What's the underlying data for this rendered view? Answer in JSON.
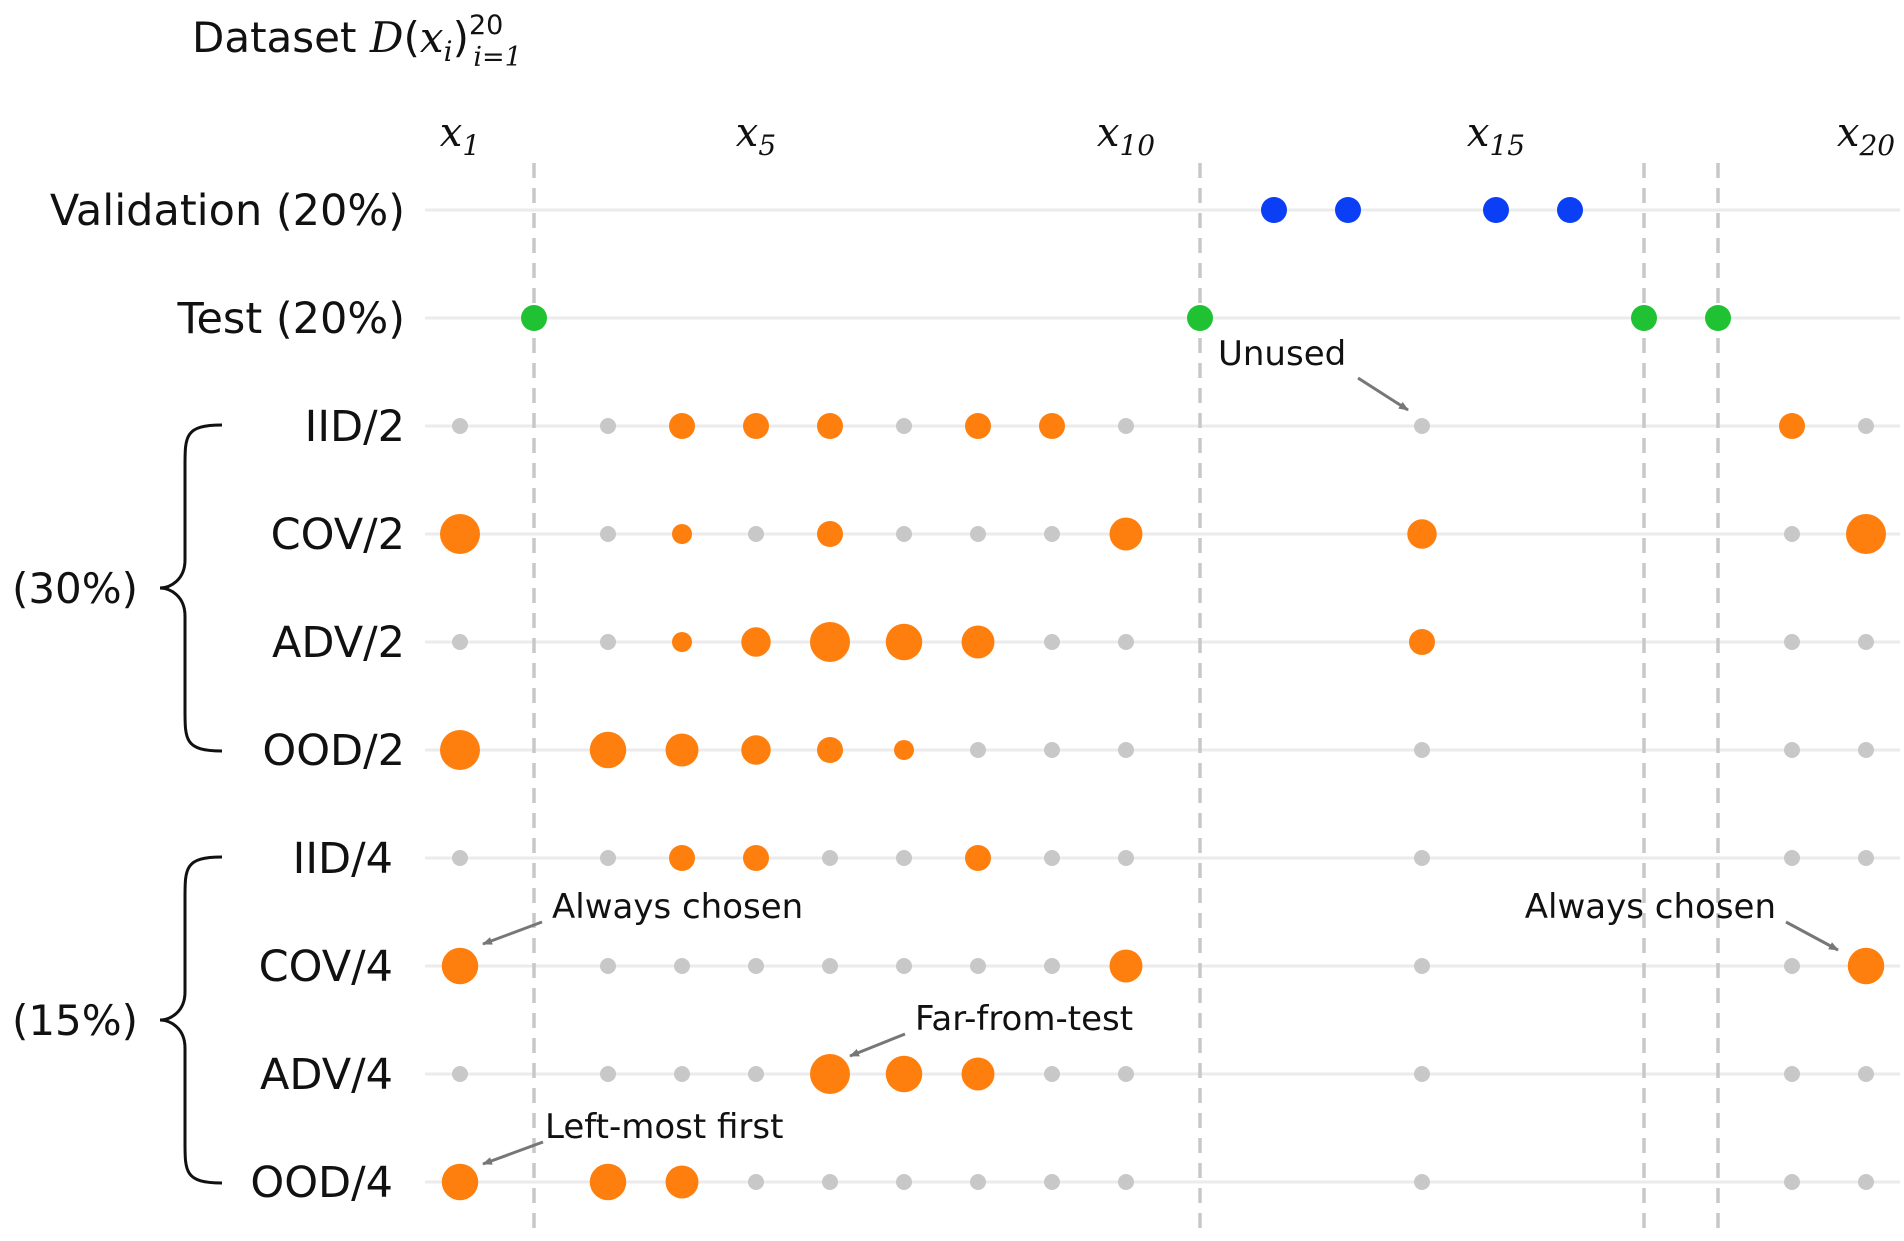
{
  "chart_data": {
    "type": "scatter",
    "title": {
      "prefix": "Dataset ",
      "func": "D",
      "open": "(",
      "var": "x",
      "var_sub": "i",
      "close": ")",
      "sup": "20",
      "sub": "i=1"
    },
    "x_ticks": [
      {
        "var": "x",
        "sub": "1",
        "index": 1
      },
      {
        "var": "x",
        "sub": "5",
        "index": 5
      },
      {
        "var": "x",
        "sub": "10",
        "index": 10
      },
      {
        "var": "x",
        "sub": "15",
        "index": 15
      },
      {
        "var": "x",
        "sub": "20",
        "index": 20
      }
    ],
    "x_range": [
      1,
      20
    ],
    "split_boundaries": [
      2,
      11,
      17,
      18
    ],
    "colors": {
      "validation": "#0a3ff5",
      "test": "#1fc232",
      "selected": "#ff7f0e",
      "unused": "#c8c8c8",
      "boundary": "#c8c8c8",
      "row_line": "#ebebeb",
      "annotation": "#777777"
    },
    "rows": [
      {
        "label": "Validation (20%)",
        "kind": "validation",
        "points": [
          {
            "x": 12,
            "s": 2
          },
          {
            "x": 13,
            "s": 2
          },
          {
            "x": 15,
            "s": 2
          },
          {
            "x": 16,
            "s": 2
          }
        ]
      },
      {
        "label": "Test (20%)",
        "kind": "test",
        "points": [
          {
            "x": 2,
            "s": 2
          },
          {
            "x": 11,
            "s": 2
          },
          {
            "x": 17,
            "s": 2
          },
          {
            "x": 18,
            "s": 2
          }
        ]
      },
      {
        "label": "IID/2",
        "kind": "train",
        "points": [
          {
            "x": 1,
            "s": 0
          },
          {
            "x": 3,
            "s": 0
          },
          {
            "x": 4,
            "s": 2
          },
          {
            "x": 5,
            "s": 2
          },
          {
            "x": 6,
            "s": 2
          },
          {
            "x": 7,
            "s": 0
          },
          {
            "x": 8,
            "s": 2
          },
          {
            "x": 9,
            "s": 2
          },
          {
            "x": 10,
            "s": 0
          },
          {
            "x": 14,
            "s": 0
          },
          {
            "x": 19,
            "s": 2
          },
          {
            "x": 20,
            "s": 0
          }
        ]
      },
      {
        "label": "COV/2",
        "kind": "train",
        "points": [
          {
            "x": 1,
            "s": 4
          },
          {
            "x": 3,
            "s": 0
          },
          {
            "x": 4,
            "s": 1
          },
          {
            "x": 5,
            "s": 0
          },
          {
            "x": 6,
            "s": 2
          },
          {
            "x": 7,
            "s": 0
          },
          {
            "x": 8,
            "s": 0
          },
          {
            "x": 9,
            "s": 0
          },
          {
            "x": 10,
            "s": 3
          },
          {
            "x": 14,
            "s": 2.5
          },
          {
            "x": 19,
            "s": 0
          },
          {
            "x": 20,
            "s": 4
          }
        ]
      },
      {
        "label": "ADV/2",
        "kind": "train",
        "points": [
          {
            "x": 1,
            "s": 0
          },
          {
            "x": 3,
            "s": 0
          },
          {
            "x": 4,
            "s": 1
          },
          {
            "x": 5,
            "s": 2.5
          },
          {
            "x": 6,
            "s": 4
          },
          {
            "x": 7,
            "s": 3.5
          },
          {
            "x": 8,
            "s": 3
          },
          {
            "x": 9,
            "s": 0
          },
          {
            "x": 10,
            "s": 0
          },
          {
            "x": 14,
            "s": 2
          },
          {
            "x": 19,
            "s": 0
          },
          {
            "x": 20,
            "s": 0
          }
        ]
      },
      {
        "label": "OOD/2",
        "kind": "train",
        "points": [
          {
            "x": 1,
            "s": 4
          },
          {
            "x": 3,
            "s": 3.5
          },
          {
            "x": 4,
            "s": 3
          },
          {
            "x": 5,
            "s": 2.5
          },
          {
            "x": 6,
            "s": 2
          },
          {
            "x": 7,
            "s": 1
          },
          {
            "x": 8,
            "s": 0
          },
          {
            "x": 9,
            "s": 0
          },
          {
            "x": 10,
            "s": 0
          },
          {
            "x": 14,
            "s": 0
          },
          {
            "x": 19,
            "s": 0
          },
          {
            "x": 20,
            "s": 0
          }
        ]
      },
      {
        "label": "IID/4",
        "kind": "train",
        "points": [
          {
            "x": 1,
            "s": 0
          },
          {
            "x": 3,
            "s": 0
          },
          {
            "x": 4,
            "s": 2
          },
          {
            "x": 5,
            "s": 2
          },
          {
            "x": 6,
            "s": 0
          },
          {
            "x": 7,
            "s": 0
          },
          {
            "x": 8,
            "s": 2
          },
          {
            "x": 9,
            "s": 0
          },
          {
            "x": 10,
            "s": 0
          },
          {
            "x": 14,
            "s": 0
          },
          {
            "x": 19,
            "s": 0
          },
          {
            "x": 20,
            "s": 0
          }
        ]
      },
      {
        "label": "COV/4",
        "kind": "train",
        "points": [
          {
            "x": 1,
            "s": 3.5
          },
          {
            "x": 3,
            "s": 0
          },
          {
            "x": 4,
            "s": 0
          },
          {
            "x": 5,
            "s": 0
          },
          {
            "x": 6,
            "s": 0
          },
          {
            "x": 7,
            "s": 0
          },
          {
            "x": 8,
            "s": 0
          },
          {
            "x": 9,
            "s": 0
          },
          {
            "x": 10,
            "s": 3
          },
          {
            "x": 14,
            "s": 0
          },
          {
            "x": 19,
            "s": 0
          },
          {
            "x": 20,
            "s": 3.5
          }
        ]
      },
      {
        "label": "ADV/4",
        "kind": "train",
        "points": [
          {
            "x": 1,
            "s": 0
          },
          {
            "x": 3,
            "s": 0
          },
          {
            "x": 4,
            "s": 0
          },
          {
            "x": 5,
            "s": 0
          },
          {
            "x": 6,
            "s": 4
          },
          {
            "x": 7,
            "s": 3.5
          },
          {
            "x": 8,
            "s": 3
          },
          {
            "x": 9,
            "s": 0
          },
          {
            "x": 10,
            "s": 0
          },
          {
            "x": 14,
            "s": 0
          },
          {
            "x": 19,
            "s": 0
          },
          {
            "x": 20,
            "s": 0
          }
        ]
      },
      {
        "label": "OOD/4",
        "kind": "train",
        "points": [
          {
            "x": 1,
            "s": 3.5
          },
          {
            "x": 3,
            "s": 3.5
          },
          {
            "x": 4,
            "s": 3
          },
          {
            "x": 5,
            "s": 0
          },
          {
            "x": 6,
            "s": 0
          },
          {
            "x": 7,
            "s": 0
          },
          {
            "x": 8,
            "s": 0
          },
          {
            "x": 9,
            "s": 0
          },
          {
            "x": 10,
            "s": 0
          },
          {
            "x": 14,
            "s": 0
          },
          {
            "x": 19,
            "s": 0
          },
          {
            "x": 20,
            "s": 0
          }
        ]
      }
    ],
    "groups": [
      {
        "label": "(30%)",
        "rows": [
          2,
          5
        ]
      },
      {
        "label": "(15%)",
        "rows": [
          6,
          9
        ]
      }
    ],
    "annotations": [
      {
        "text": "Unused",
        "row": 2,
        "x": 14
      },
      {
        "text": "Always chosen",
        "row": 7,
        "x": 1
      },
      {
        "text": "Always chosen",
        "row": 7,
        "x": 20
      },
      {
        "text": "Far-from-test",
        "row": 8,
        "x": 6
      },
      {
        "text": "Left-most first",
        "row": 9,
        "x": 1
      }
    ]
  }
}
